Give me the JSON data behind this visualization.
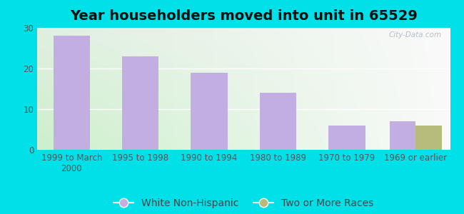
{
  "title": "Year householders moved into unit in 65529",
  "categories": [
    "1999 to March\n2000",
    "1995 to 1998",
    "1990 to 1994",
    "1980 to 1989",
    "1970 to 1979",
    "1969 or earlier"
  ],
  "white_non_hispanic": [
    28,
    23,
    19,
    14,
    6,
    7
  ],
  "two_or_more_races": [
    0,
    0,
    0,
    0,
    0,
    6
  ],
  "bar_color_white": "#c2aee0",
  "bar_color_two": "#b8bc7a",
  "background_outer": "#00e0e8",
  "ylim": [
    0,
    30
  ],
  "yticks": [
    0,
    10,
    20,
    30
  ],
  "grid_color": "#ffffff",
  "title_fontsize": 14,
  "tick_fontsize": 8.5,
  "legend_fontsize": 10,
  "bar_width": 0.38,
  "watermark": "City-Data.com"
}
